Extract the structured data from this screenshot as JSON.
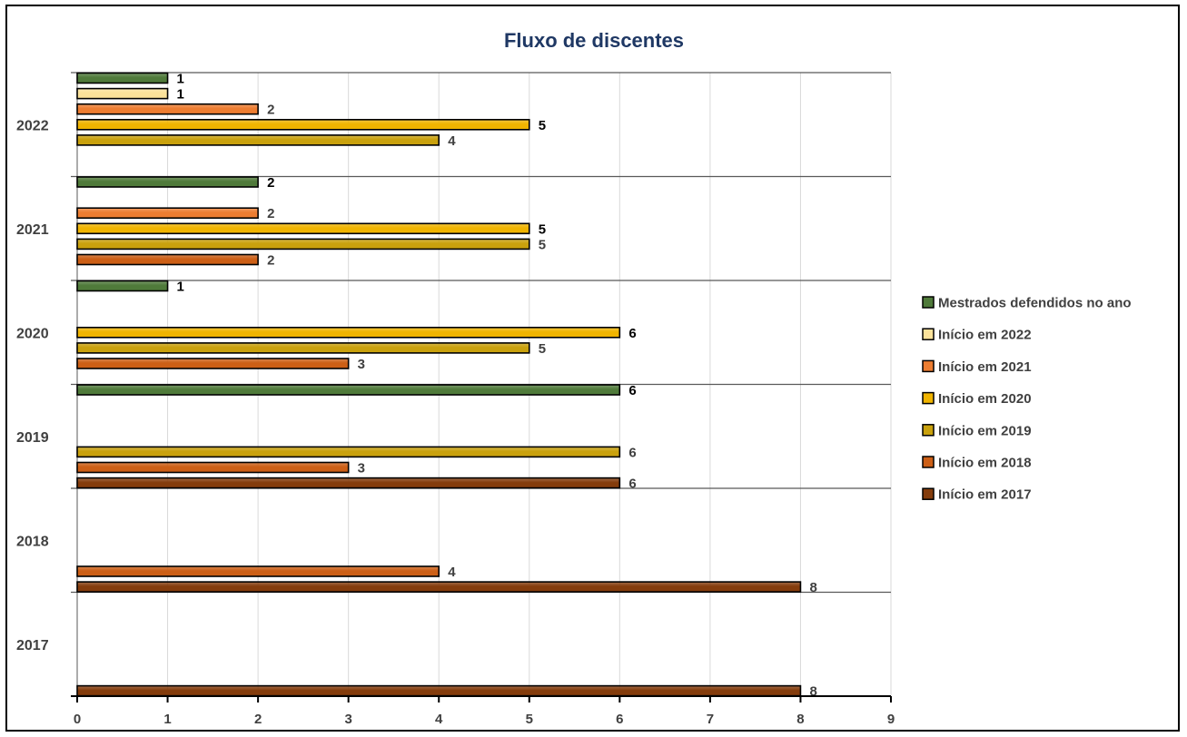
{
  "chart_data": {
    "type": "bar",
    "orientation": "horizontal",
    "title": "Fluxo de discentes",
    "xlabel": "",
    "ylabel": "",
    "xlim": [
      0,
      9
    ],
    "x_ticks": [
      "0",
      "1",
      "2",
      "3",
      "4",
      "5",
      "6",
      "7",
      "8",
      "9"
    ],
    "grid": "vertical",
    "legend_position": "right",
    "categories": [
      "2022",
      "2021",
      "2020",
      "2019",
      "2018",
      "2017"
    ],
    "series": [
      {
        "name": "Mestrados defendidos no ano",
        "color": "#4f7a3a",
        "label_color": "#000000",
        "values": [
          1,
          2,
          1,
          6,
          null,
          null
        ]
      },
      {
        "name": "Início em 2022",
        "color": "#fbe29a",
        "label_color": "#000000",
        "values": [
          1,
          null,
          null,
          null,
          null,
          null
        ]
      },
      {
        "name": "Início em 2021",
        "color": "#ed7d31",
        "label_color": "#404040",
        "values": [
          2,
          2,
          null,
          null,
          null,
          null
        ]
      },
      {
        "name": "Início em 2020",
        "color": "#f0b400",
        "label_color": "#000000",
        "values": [
          5,
          5,
          6,
          null,
          null,
          null
        ]
      },
      {
        "name": "Início em 2019",
        "color": "#c9a10d",
        "label_color": "#404040",
        "values": [
          4,
          5,
          5,
          6,
          null,
          null
        ]
      },
      {
        "name": "Início em 2018",
        "color": "#cc5f16",
        "label_color": "#404040",
        "values": [
          null,
          2,
          3,
          3,
          4,
          null
        ]
      },
      {
        "name": "Início em 2017",
        "color": "#843c0c",
        "label_color": "#404040",
        "values": [
          null,
          null,
          null,
          6,
          8,
          8
        ]
      }
    ]
  }
}
